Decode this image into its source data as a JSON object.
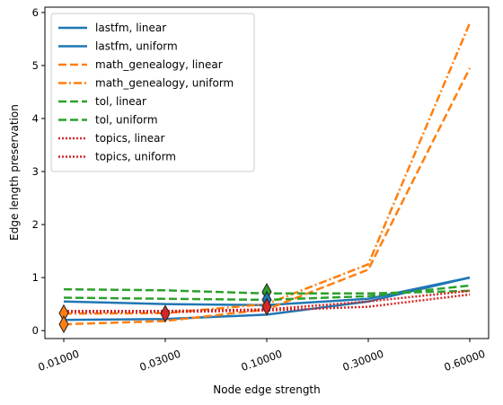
{
  "chart_data": {
    "type": "line",
    "xlabel": "Node edge strength",
    "ylabel": "Edge length preservation",
    "categories": [
      "0.01000",
      "0.03000",
      "0.10000",
      "0.30000",
      "0.60000"
    ],
    "ylim": [
      -0.15,
      6.1
    ],
    "yticks": [
      "0",
      "1",
      "2",
      "3",
      "4",
      "5",
      "6"
    ],
    "grid": false,
    "legend_position": "top-left",
    "series": [
      {
        "name": "lastfm, linear",
        "color": "#1f77b4",
        "dash": "solid",
        "values": [
          0.2,
          0.22,
          0.3,
          0.55,
          1.0
        ]
      },
      {
        "name": "lastfm, uniform",
        "color": "#1f77b4",
        "dash": "solid",
        "values": [
          0.55,
          0.5,
          0.48,
          0.6,
          1.0
        ]
      },
      {
        "name": "math_genealogy, linear",
        "color": "#ff7f0e",
        "dash": "longdash",
        "values": [
          0.12,
          0.18,
          0.4,
          1.15,
          4.95
        ]
      },
      {
        "name": "math_genealogy, uniform",
        "color": "#ff7f0e",
        "dash": "dashdot",
        "values": [
          0.32,
          0.33,
          0.5,
          1.25,
          5.8
        ]
      },
      {
        "name": "tol, linear",
        "color": "#2ca02c",
        "dash": "longdash",
        "values": [
          0.78,
          0.76,
          0.7,
          0.7,
          0.75
        ]
      },
      {
        "name": "tol, uniform",
        "color": "#2ca02c",
        "dash": "dash",
        "values": [
          0.62,
          0.6,
          0.58,
          0.65,
          0.85
        ]
      },
      {
        "name": "topics, linear",
        "color": "#d62728",
        "dash": "dot",
        "values": [
          0.35,
          0.35,
          0.38,
          0.45,
          0.68
        ]
      },
      {
        "name": "topics, uniform",
        "color": "#d62728",
        "dash": "dot",
        "values": [
          0.37,
          0.37,
          0.4,
          0.55,
          0.75
        ]
      }
    ],
    "markers": [
      {
        "x": "0.01000",
        "y": 0.33,
        "color": "#ff7f0e"
      },
      {
        "x": "0.01000",
        "y": 0.12,
        "color": "#ff7f0e"
      },
      {
        "x": "0.03000",
        "y": 0.32,
        "color": "#d62728"
      },
      {
        "x": "0.10000",
        "y": 0.73,
        "color": "#2ca02c"
      },
      {
        "x": "0.10000",
        "y": 0.58,
        "color": "#1f77b4"
      },
      {
        "x": "0.10000",
        "y": 0.45,
        "color": "#d62728"
      }
    ]
  }
}
